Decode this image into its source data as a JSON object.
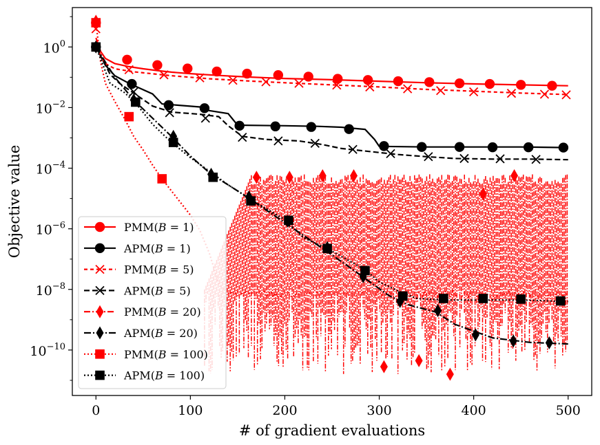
{
  "chart_data": {
    "type": "line",
    "title": "",
    "xlabel": "# of gradient evaluations",
    "ylabel": "Objective value",
    "xlim": [
      -25,
      525
    ],
    "ylim_log10": [
      -11.5,
      1.3
    ],
    "yscale": "log",
    "x_ticks": [
      {
        "value": 0,
        "label": "0"
      },
      {
        "value": 100,
        "label": "100"
      },
      {
        "value": 200,
        "label": "200"
      },
      {
        "value": 300,
        "label": "300"
      },
      {
        "value": 400,
        "label": "400"
      },
      {
        "value": 500,
        "label": "500"
      }
    ],
    "y_ticks": [
      {
        "exp": 0,
        "base": "10",
        "sup": "0"
      },
      {
        "exp": -2,
        "base": "10",
        "sup": "−2"
      },
      {
        "exp": -4,
        "base": "10",
        "sup": "−4"
      },
      {
        "exp": -6,
        "base": "10",
        "sup": "−6"
      },
      {
        "exp": -8,
        "base": "10",
        "sup": "−8"
      },
      {
        "exp": -10,
        "base": "10",
        "sup": "−10"
      }
    ],
    "legend": {
      "placement": "lower-left"
    },
    "series": [
      {
        "name": "PMM(B = 1)",
        "label_prefix": "PMM(",
        "label_var": "B",
        "label_suffix": " = 1)",
        "color": "#ff0000",
        "dash": "solid",
        "marker": "circle",
        "points": [
          [
            0,
            0.3
          ],
          [
            5,
            -0.15
          ],
          [
            10,
            -0.38
          ],
          [
            20,
            -0.55
          ],
          [
            35,
            -0.65
          ],
          [
            50,
            -0.72
          ],
          [
            65,
            -0.78
          ],
          [
            80,
            -0.83
          ],
          [
            100,
            -0.88
          ],
          [
            130,
            -0.94
          ],
          [
            160,
            -0.99
          ],
          [
            200,
            -1.04
          ],
          [
            250,
            -1.08
          ],
          [
            300,
            -1.13
          ],
          [
            350,
            -1.18
          ],
          [
            400,
            -1.22
          ],
          [
            450,
            -1.25
          ],
          [
            500,
            -1.28
          ]
        ],
        "markers": [
          [
            0,
            0.8
          ],
          [
            33,
            -0.42
          ],
          [
            65,
            -0.6
          ],
          [
            97,
            -0.71
          ],
          [
            128,
            -0.81
          ],
          [
            160,
            -0.88
          ],
          [
            193,
            -0.93
          ],
          [
            225,
            -0.98
          ],
          [
            256,
            -1.05
          ],
          [
            288,
            -1.09
          ],
          [
            320,
            -1.13
          ],
          [
            353,
            -1.16
          ],
          [
            385,
            -1.2
          ],
          [
            417,
            -1.22
          ],
          [
            450,
            -1.25
          ],
          [
            483,
            -1.28
          ]
        ]
      },
      {
        "name": "APM(B = 1)",
        "label_prefix": "APM(",
        "label_var": "B",
        "label_suffix": " = 1)",
        "color": "#000000",
        "dash": "solid",
        "marker": "circle",
        "points": [
          [
            0,
            0
          ],
          [
            10,
            -0.6
          ],
          [
            20,
            -0.95
          ],
          [
            35,
            -1.2
          ],
          [
            60,
            -1.55
          ],
          [
            70,
            -1.88
          ],
          [
            110,
            -1.98
          ],
          [
            120,
            -2.1
          ],
          [
            140,
            -2.2
          ],
          [
            150,
            -2.58
          ],
          [
            200,
            -2.6
          ],
          [
            235,
            -2.62
          ],
          [
            260,
            -2.65
          ],
          [
            285,
            -2.72
          ],
          [
            295,
            -3.05
          ],
          [
            300,
            -3.28
          ],
          [
            350,
            -3.3
          ],
          [
            400,
            -3.3
          ],
          [
            450,
            -3.3
          ],
          [
            500,
            -3.32
          ]
        ],
        "markers": [
          [
            0,
            0
          ],
          [
            38,
            -1.22
          ],
          [
            77,
            -1.92
          ],
          [
            115,
            -2.02
          ],
          [
            152,
            -2.6
          ],
          [
            190,
            -2.62
          ],
          [
            228,
            -2.64
          ],
          [
            268,
            -2.71
          ],
          [
            305,
            -3.27
          ],
          [
            345,
            -3.3
          ],
          [
            385,
            -3.3
          ],
          [
            420,
            -3.31
          ],
          [
            458,
            -3.31
          ],
          [
            495,
            -3.32
          ]
        ]
      },
      {
        "name": "PMM(B = 5)",
        "label_prefix": "PMM(",
        "label_var": "B",
        "label_suffix": " = 5)",
        "color": "#ff0000",
        "dash": "5,4",
        "marker": "x",
        "points": [
          [
            0,
            0.2
          ],
          [
            5,
            -0.3
          ],
          [
            10,
            -0.55
          ],
          [
            20,
            -0.72
          ],
          [
            40,
            -0.82
          ],
          [
            80,
            -0.95
          ],
          [
            120,
            -1.05
          ],
          [
            160,
            -1.12
          ],
          [
            200,
            -1.18
          ],
          [
            250,
            -1.25
          ],
          [
            300,
            -1.32
          ],
          [
            350,
            -1.4
          ],
          [
            400,
            -1.46
          ],
          [
            450,
            -1.52
          ],
          [
            500,
            -1.57
          ]
        ],
        "markers": [
          [
            0,
            0.6
          ],
          [
            35,
            -0.75
          ],
          [
            72,
            -0.92
          ],
          [
            110,
            -1.02
          ],
          [
            145,
            -1.1
          ],
          [
            180,
            -1.15
          ],
          [
            215,
            -1.2
          ],
          [
            255,
            -1.26
          ],
          [
            290,
            -1.32
          ],
          [
            330,
            -1.38
          ],
          [
            365,
            -1.44
          ],
          [
            400,
            -1.48
          ],
          [
            440,
            -1.53
          ],
          [
            475,
            -1.56
          ],
          [
            498,
            -1.58
          ]
        ]
      },
      {
        "name": "APM(B = 5)",
        "label_prefix": "APM(",
        "label_var": "B",
        "label_suffix": " = 5)",
        "color": "#000000",
        "dash": "8,4",
        "marker": "x",
        "points": [
          [
            0,
            0
          ],
          [
            15,
            -0.9
          ],
          [
            25,
            -1.2
          ],
          [
            38,
            -1.48
          ],
          [
            60,
            -1.95
          ],
          [
            80,
            -2.15
          ],
          [
            110,
            -2.22
          ],
          [
            130,
            -2.3
          ],
          [
            140,
            -2.6
          ],
          [
            155,
            -2.95
          ],
          [
            180,
            -3.05
          ],
          [
            215,
            -3.1
          ],
          [
            240,
            -3.22
          ],
          [
            260,
            -3.35
          ],
          [
            290,
            -3.45
          ],
          [
            320,
            -3.55
          ],
          [
            350,
            -3.62
          ],
          [
            380,
            -3.68
          ],
          [
            420,
            -3.7
          ],
          [
            460,
            -3.7
          ],
          [
            500,
            -3.72
          ]
        ],
        "markers": [
          [
            0,
            0
          ],
          [
            40,
            -1.48
          ],
          [
            78,
            -2.17
          ],
          [
            116,
            -2.35
          ],
          [
            155,
            -2.98
          ],
          [
            193,
            -3.1
          ],
          [
            232,
            -3.18
          ],
          [
            272,
            -3.38
          ],
          [
            312,
            -3.52
          ],
          [
            352,
            -3.62
          ],
          [
            390,
            -3.68
          ],
          [
            428,
            -3.69
          ],
          [
            466,
            -3.71
          ]
        ]
      },
      {
        "name": "PMM(B = 20)",
        "label_prefix": "PMM(",
        "label_var": "B",
        "label_suffix": " = 20)",
        "color": "#ff0000",
        "dash": "9,3,2,3",
        "marker": "diamond",
        "points": [],
        "markers": [
          [
            0,
            0.85
          ],
          [
            170,
            -4.3
          ],
          [
            205,
            -4.3
          ],
          [
            240,
            -4.25
          ],
          [
            273,
            -4.25
          ],
          [
            305,
            -10.55
          ],
          [
            342,
            -10.35
          ],
          [
            375,
            -10.8
          ],
          [
            410,
            -4.85
          ],
          [
            443,
            -4.25
          ]
        ]
      },
      {
        "name": "APM(B = 20)",
        "label_prefix": "APM(",
        "label_var": "B",
        "label_suffix": " = 20)",
        "color": "#000000",
        "dash": "10,3,2,3",
        "marker": "diamond",
        "points": [
          [
            0,
            0
          ],
          [
            20,
            -1.0
          ],
          [
            40,
            -1.75
          ],
          [
            80,
            -2.95
          ],
          [
            100,
            -3.6
          ],
          [
            122,
            -4.2
          ],
          [
            140,
            -4.55
          ],
          [
            160,
            -4.95
          ],
          [
            200,
            -5.8
          ],
          [
            240,
            -6.65
          ],
          [
            270,
            -7.3
          ],
          [
            290,
            -7.75
          ],
          [
            310,
            -8.2
          ],
          [
            330,
            -8.5
          ],
          [
            360,
            -8.75
          ],
          [
            380,
            -9.15
          ],
          [
            420,
            -9.6
          ],
          [
            460,
            -9.75
          ],
          [
            500,
            -9.8
          ]
        ],
        "markers": [
          [
            0,
            0
          ],
          [
            40,
            -1.75
          ],
          [
            82,
            -2.95
          ],
          [
            122,
            -4.2
          ],
          [
            162,
            -4.95
          ],
          [
            203,
            -5.75
          ],
          [
            245,
            -6.62
          ],
          [
            283,
            -7.58
          ],
          [
            322,
            -8.4
          ],
          [
            362,
            -8.7
          ],
          [
            402,
            -9.5
          ],
          [
            442,
            -9.7
          ],
          [
            480,
            -9.76
          ]
        ]
      },
      {
        "name": "PMM(B = 100)",
        "label_prefix": "PMM(",
        "label_var": "B",
        "label_suffix": " = 100)",
        "color": "#ff0000",
        "dash": "2,3",
        "marker": "square",
        "points": [
          [
            0,
            0.8
          ],
          [
            5,
            -0.5
          ],
          [
            10,
            -1.2
          ],
          [
            20,
            -1.8
          ],
          [
            30,
            -2.35
          ],
          [
            40,
            -2.95
          ],
          [
            50,
            -3.4
          ],
          [
            60,
            -3.9
          ],
          [
            70,
            -4.35
          ],
          [
            80,
            -4.75
          ],
          [
            90,
            -5.15
          ],
          [
            100,
            -5.55
          ],
          [
            110,
            -6.05
          ],
          [
            120,
            -6.8
          ],
          [
            130,
            -7.8
          ],
          [
            135,
            -8.0
          ]
        ],
        "markers": [
          [
            0,
            0.8
          ],
          [
            35,
            -2.3
          ],
          [
            70,
            -4.35
          ]
        ]
      },
      {
        "name": "APM(B = 100)",
        "label_prefix": "APM(",
        "label_var": "B",
        "label_suffix": " = 100)",
        "color": "#000000",
        "dash": "2,3",
        "marker": "square",
        "points": [
          [
            0,
            0
          ],
          [
            15,
            -1.2
          ],
          [
            30,
            -1.5
          ],
          [
            42,
            -1.85
          ],
          [
            60,
            -2.55
          ],
          [
            80,
            -3.15
          ],
          [
            100,
            -3.65
          ],
          [
            120,
            -4.1
          ],
          [
            140,
            -4.55
          ],
          [
            165,
            -5.05
          ],
          [
            200,
            -5.7
          ],
          [
            220,
            -6.3
          ],
          [
            245,
            -6.65
          ],
          [
            265,
            -7.0
          ],
          [
            285,
            -7.35
          ],
          [
            300,
            -7.75
          ],
          [
            320,
            -8.05
          ],
          [
            340,
            -8.3
          ],
          [
            370,
            -8.35
          ],
          [
            400,
            -8.35
          ],
          [
            450,
            -8.35
          ],
          [
            500,
            -8.4
          ]
        ],
        "markers": [
          [
            0,
            0
          ],
          [
            42,
            -1.82
          ],
          [
            82,
            -3.15
          ],
          [
            124,
            -4.3
          ],
          [
            164,
            -5.08
          ],
          [
            204,
            -5.72
          ],
          [
            245,
            -6.65
          ],
          [
            285,
            -7.38
          ],
          [
            325,
            -8.22
          ],
          [
            368,
            -8.3
          ],
          [
            410,
            -8.3
          ],
          [
            450,
            -8.32
          ],
          [
            492,
            -8.38
          ]
        ]
      }
    ],
    "oscillation": {
      "series": "PMM(B = 20) / PMM(B = 100) after convergence",
      "color": "#ff0000",
      "x_range": [
        115,
        500
      ],
      "upper_log10": -4.2,
      "lower_log10_range": [
        -10.8,
        -8.0
      ],
      "plateau_log10": -8.0
    }
  }
}
